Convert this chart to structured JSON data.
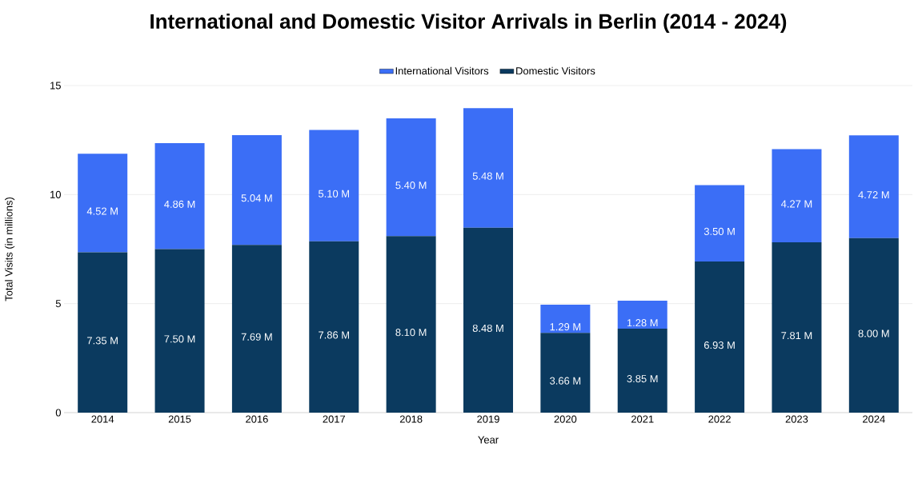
{
  "chart_data": {
    "type": "bar",
    "title": "International and Domestic Visitor Arrivals in Berlin (2014 - 2024)",
    "xlabel": "Year",
    "ylabel": "Total Visits (in millions)",
    "categories": [
      "2014",
      "2015",
      "2016",
      "2017",
      "2018",
      "2019",
      "2020",
      "2021",
      "2022",
      "2023",
      "2024"
    ],
    "stacked": true,
    "series": [
      {
        "name": "Domestic Visitors",
        "color": "#0b3a5f",
        "values": [
          7.35,
          7.5,
          7.69,
          7.86,
          8.1,
          8.48,
          3.66,
          3.85,
          6.93,
          7.81,
          8.0
        ],
        "value_labels": [
          "7.35 M",
          "7.50 M",
          "7.69 M",
          "7.86 M",
          "8.10 M",
          "8.48 M",
          "3.66 M",
          "3.85 M",
          "6.93 M",
          "7.81 M",
          "8.00 M"
        ]
      },
      {
        "name": "International Visitors",
        "color": "#3b6ef6",
        "values": [
          4.52,
          4.86,
          5.04,
          5.1,
          5.4,
          5.48,
          1.29,
          1.28,
          3.5,
          4.27,
          4.72
        ],
        "value_labels": [
          "4.52 M",
          "4.86 M",
          "5.04 M",
          "5.10 M",
          "5.40 M",
          "5.48 M",
          "1.29 M",
          "1.28 M",
          "3.50 M",
          "4.27 M",
          "4.72 M"
        ]
      }
    ],
    "ylim": [
      0,
      15
    ],
    "yticks": [
      0,
      5,
      10,
      15
    ],
    "grid": "y",
    "legend": "top"
  }
}
